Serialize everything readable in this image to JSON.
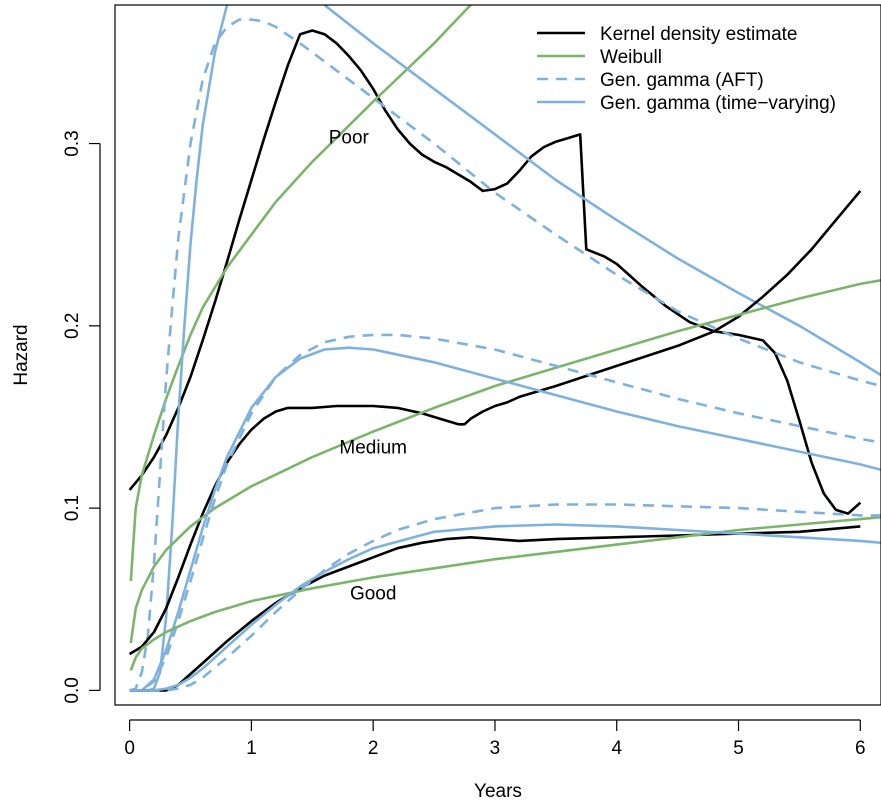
{
  "chart_data": {
    "type": "line",
    "title": "",
    "xlabel": "Years",
    "ylabel": "Hazard",
    "xlim": [
      -0.12,
      6.17
    ],
    "ylim": [
      -0.008,
      0.376
    ],
    "x_ticks": [
      "0",
      "1",
      "2",
      "3",
      "4",
      "5",
      "6"
    ],
    "x_tick_values": [
      0,
      1,
      2,
      3,
      4,
      5,
      6
    ],
    "y_ticks": [
      "0.0",
      "0.1",
      "0.2",
      "0.3"
    ],
    "y_tick_values": [
      0,
      0.1,
      0.2,
      0.3
    ],
    "grid": false,
    "legend_position": "top-right",
    "legend": [
      {
        "label": "Kernel density estimate",
        "color": "#000000",
        "dash": "solid"
      },
      {
        "label": "Weibull",
        "color": "#7cb46b",
        "dash": "solid"
      },
      {
        "label": "Gen. gamma (AFT)",
        "color": "#7eb1de",
        "dash": "dashed"
      },
      {
        "label": "Gen. gamma (time−varying)",
        "color": "#7eb1de",
        "dash": "solid"
      }
    ],
    "annotations": [
      {
        "text": "Poor",
        "x": 1.8,
        "y": 0.3
      },
      {
        "text": "Medium",
        "x": 2.0,
        "y": 0.13
      },
      {
        "text": "Good",
        "x": 2.0,
        "y": 0.05
      }
    ],
    "series": [
      {
        "group": "Poor",
        "model": "Kernel density estimate",
        "color": "#000000",
        "dash": "solid",
        "x": [
          0,
          0.1,
          0.2,
          0.3,
          0.4,
          0.5,
          0.6,
          0.7,
          0.8,
          0.9,
          1.0,
          1.1,
          1.2,
          1.3,
          1.4,
          1.5,
          1.6,
          1.7,
          1.8,
          1.9,
          2.0,
          2.1,
          2.2,
          2.3,
          2.4,
          2.5,
          2.6,
          2.7,
          2.8,
          2.9,
          3.0,
          3.1,
          3.2,
          3.3,
          3.4,
          3.5,
          3.6,
          3.7,
          3.72,
          3.75,
          3.9,
          4.0,
          4.2,
          4.4,
          4.6,
          4.8,
          5.0,
          5.2,
          5.3,
          5.4,
          5.5,
          5.6,
          5.7,
          5.8,
          5.9,
          6.0
        ],
        "y": [
          0.11,
          0.118,
          0.128,
          0.14,
          0.155,
          0.172,
          0.192,
          0.213,
          0.235,
          0.258,
          0.28,
          0.302,
          0.323,
          0.343,
          0.36,
          0.362,
          0.36,
          0.355,
          0.348,
          0.34,
          0.33,
          0.318,
          0.308,
          0.3,
          0.294,
          0.29,
          0.287,
          0.283,
          0.279,
          0.274,
          0.275,
          0.278,
          0.285,
          0.293,
          0.298,
          0.301,
          0.303,
          0.305,
          0.28,
          0.242,
          0.238,
          0.234,
          0.222,
          0.211,
          0.202,
          0.197,
          0.195,
          0.192,
          0.185,
          0.17,
          0.148,
          0.125,
          0.108,
          0.099,
          0.097,
          0.103
        ]
      },
      {
        "group": "Poor",
        "model": "Weibull",
        "color": "#7cb46b",
        "dash": "solid",
        "x": [
          0.01,
          0.05,
          0.1,
          0.2,
          0.3,
          0.4,
          0.5,
          0.6,
          0.8,
          1.0,
          1.2,
          1.5,
          2.0,
          2.5,
          2.8
        ],
        "y": [
          0.06,
          0.1,
          0.118,
          0.14,
          0.16,
          0.178,
          0.195,
          0.21,
          0.232,
          0.25,
          0.268,
          0.29,
          0.323,
          0.355,
          0.376
        ]
      },
      {
        "group": "Poor",
        "model": "Gen. gamma (AFT)",
        "color": "#7eb1de",
        "dash": "dashed",
        "x": [
          0,
          0.05,
          0.1,
          0.15,
          0.2,
          0.25,
          0.3,
          0.35,
          0.4,
          0.5,
          0.6,
          0.7,
          0.8,
          0.9,
          1.0,
          1.1,
          1.2,
          1.4,
          1.6,
          1.8,
          2.0,
          2.5,
          3.0,
          3.5,
          4.0,
          4.5,
          5.0,
          5.5,
          6.0,
          6.17
        ],
        "y": [
          0,
          0.001,
          0.01,
          0.03,
          0.07,
          0.12,
          0.17,
          0.21,
          0.248,
          0.3,
          0.335,
          0.355,
          0.364,
          0.368,
          0.368,
          0.367,
          0.364,
          0.355,
          0.345,
          0.335,
          0.325,
          0.3,
          0.273,
          0.25,
          0.228,
          0.208,
          0.193,
          0.18,
          0.17,
          0.167
        ]
      },
      {
        "group": "Poor",
        "model": "Gen. gamma (time−varying)",
        "color": "#7eb1de",
        "dash": "solid",
        "x": [
          0,
          0.1,
          0.15,
          0.2,
          0.25,
          0.3,
          0.35,
          0.4,
          0.45,
          0.5,
          0.55,
          0.6,
          0.7,
          0.8
        ],
        "y": [
          0,
          0.0,
          0.0,
          0.001,
          0.01,
          0.04,
          0.09,
          0.15,
          0.2,
          0.245,
          0.28,
          0.31,
          0.35,
          0.376
        ]
      },
      {
        "group": "Poor",
        "model": "Gen. gamma (time−varying)",
        "color": "#7eb1de",
        "dash": "solid",
        "x": [
          1.6,
          2.0,
          2.5,
          3.0,
          3.5,
          4.0,
          4.5,
          5.0,
          5.5,
          6.0,
          6.17
        ],
        "y": [
          0.376,
          0.355,
          0.33,
          0.305,
          0.28,
          0.258,
          0.237,
          0.218,
          0.2,
          0.18,
          0.173
        ]
      },
      {
        "group": "Medium",
        "model": "Kernel density estimate",
        "color": "#000000",
        "dash": "solid",
        "x": [
          0,
          0.1,
          0.2,
          0.3,
          0.4,
          0.5,
          0.6,
          0.7,
          0.8,
          0.9,
          1.0,
          1.1,
          1.2,
          1.3,
          1.4,
          1.5,
          1.7,
          1.9,
          2.0,
          2.2,
          2.4,
          2.6,
          2.7,
          2.75,
          2.8,
          2.9,
          3.0,
          3.1,
          3.2,
          3.5,
          4.0,
          4.5,
          4.8,
          5.0,
          5.2,
          5.4,
          5.6,
          5.8,
          6.0
        ],
        "y": [
          0.02,
          0.024,
          0.032,
          0.045,
          0.062,
          0.08,
          0.097,
          0.112,
          0.125,
          0.135,
          0.143,
          0.149,
          0.153,
          0.155,
          0.155,
          0.155,
          0.156,
          0.156,
          0.156,
          0.155,
          0.152,
          0.148,
          0.146,
          0.146,
          0.149,
          0.153,
          0.156,
          0.158,
          0.161,
          0.167,
          0.178,
          0.189,
          0.197,
          0.205,
          0.216,
          0.228,
          0.242,
          0.258,
          0.274
        ]
      },
      {
        "group": "Medium",
        "model": "Weibull",
        "color": "#7cb46b",
        "dash": "solid",
        "x": [
          0.01,
          0.05,
          0.1,
          0.2,
          0.3,
          0.5,
          0.7,
          1.0,
          1.5,
          2.0,
          2.5,
          3.0,
          3.5,
          4.0,
          4.5,
          5.0,
          5.5,
          6.0,
          6.17
        ],
        "y": [
          0.026,
          0.045,
          0.055,
          0.068,
          0.077,
          0.09,
          0.1,
          0.112,
          0.128,
          0.142,
          0.155,
          0.167,
          0.177,
          0.187,
          0.197,
          0.206,
          0.215,
          0.223,
          0.225
        ]
      },
      {
        "group": "Medium",
        "model": "Gen. gamma (AFT)",
        "color": "#7eb1de",
        "dash": "dashed",
        "x": [
          0,
          0.1,
          0.2,
          0.3,
          0.4,
          0.5,
          0.6,
          0.7,
          0.8,
          1.0,
          1.2,
          1.4,
          1.6,
          1.8,
          2.0,
          2.2,
          2.5,
          3.0,
          3.5,
          4.0,
          4.5,
          5.0,
          5.5,
          6.0,
          6.17
        ],
        "y": [
          0,
          0.0,
          0.005,
          0.018,
          0.038,
          0.06,
          0.083,
          0.105,
          0.124,
          0.152,
          0.172,
          0.184,
          0.191,
          0.194,
          0.195,
          0.195,
          0.193,
          0.187,
          0.178,
          0.169,
          0.16,
          0.152,
          0.145,
          0.138,
          0.136
        ]
      },
      {
        "group": "Medium",
        "model": "Gen. gamma (time−varying)",
        "color": "#7eb1de",
        "dash": "solid",
        "x": [
          0,
          0.1,
          0.2,
          0.3,
          0.4,
          0.5,
          0.6,
          0.7,
          0.8,
          1.0,
          1.2,
          1.4,
          1.6,
          1.8,
          2.0,
          2.5,
          3.0,
          3.5,
          4.0,
          4.5,
          5.0,
          5.5,
          6.0,
          6.17
        ],
        "y": [
          0,
          0.0,
          0.006,
          0.022,
          0.043,
          0.066,
          0.089,
          0.11,
          0.128,
          0.155,
          0.172,
          0.182,
          0.187,
          0.188,
          0.187,
          0.18,
          0.171,
          0.162,
          0.153,
          0.145,
          0.138,
          0.131,
          0.124,
          0.121
        ]
      },
      {
        "group": "Good",
        "model": "Kernel density estimate",
        "color": "#000000",
        "dash": "solid",
        "x": [
          0,
          0.1,
          0.2,
          0.3,
          0.4,
          0.5,
          0.6,
          0.7,
          0.8,
          1.0,
          1.2,
          1.4,
          1.6,
          1.8,
          2.0,
          2.2,
          2.4,
          2.6,
          2.8,
          3.0,
          3.2,
          3.5,
          4.0,
          4.5,
          5.0,
          5.5,
          6.0
        ],
        "y": [
          0,
          0.0,
          0.0,
          0.0,
          0.003,
          0.009,
          0.015,
          0.021,
          0.027,
          0.038,
          0.048,
          0.056,
          0.063,
          0.068,
          0.073,
          0.078,
          0.081,
          0.083,
          0.084,
          0.083,
          0.082,
          0.083,
          0.084,
          0.085,
          0.086,
          0.087,
          0.09
        ]
      },
      {
        "group": "Good",
        "model": "Weibull",
        "color": "#7cb46b",
        "dash": "solid",
        "x": [
          0.01,
          0.05,
          0.1,
          0.2,
          0.3,
          0.5,
          0.7,
          1.0,
          1.5,
          2.0,
          2.5,
          3.0,
          3.5,
          4.0,
          4.5,
          5.0,
          5.5,
          6.0,
          6.17
        ],
        "y": [
          0.011,
          0.018,
          0.023,
          0.028,
          0.032,
          0.038,
          0.043,
          0.049,
          0.056,
          0.062,
          0.067,
          0.072,
          0.076,
          0.08,
          0.084,
          0.088,
          0.091,
          0.094,
          0.095
        ]
      },
      {
        "group": "Good",
        "model": "Gen. gamma (AFT)",
        "color": "#7eb1de",
        "dash": "dashed",
        "x": [
          0,
          0.1,
          0.2,
          0.3,
          0.4,
          0.5,
          0.6,
          0.8,
          1.0,
          1.2,
          1.4,
          1.6,
          1.8,
          2.0,
          2.2,
          2.5,
          3.0,
          3.5,
          4.0,
          4.5,
          5.0,
          5.5,
          6.0,
          6.17
        ],
        "y": [
          0,
          0.0,
          0.0,
          0.0,
          0.001,
          0.003,
          0.007,
          0.018,
          0.03,
          0.043,
          0.055,
          0.066,
          0.075,
          0.082,
          0.088,
          0.094,
          0.1,
          0.102,
          0.102,
          0.101,
          0.1,
          0.098,
          0.096,
          0.096
        ]
      },
      {
        "group": "Good",
        "model": "Gen. gamma (time−varying)",
        "color": "#7eb1de",
        "dash": "solid",
        "x": [
          0,
          0.1,
          0.2,
          0.3,
          0.4,
          0.5,
          0.6,
          0.8,
          1.0,
          1.2,
          1.4,
          1.6,
          1.8,
          2.0,
          2.5,
          3.0,
          3.5,
          4.0,
          4.5,
          5.0,
          5.5,
          6.0,
          6.17
        ],
        "y": [
          0,
          0.0,
          0.0,
          0.001,
          0.003,
          0.007,
          0.012,
          0.024,
          0.036,
          0.047,
          0.057,
          0.065,
          0.072,
          0.078,
          0.087,
          0.09,
          0.091,
          0.09,
          0.088,
          0.086,
          0.084,
          0.082,
          0.081
        ]
      }
    ]
  }
}
